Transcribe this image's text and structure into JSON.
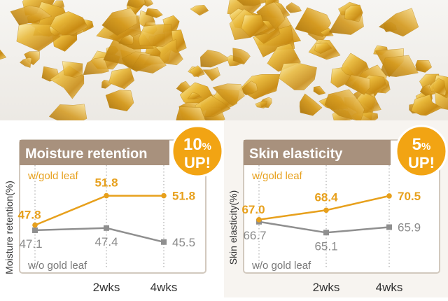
{
  "colors": {
    "gold": "#E7A01C",
    "gray": "#8F8F8F",
    "header_bar": "#A8917D",
    "frame": "#D2C9BE",
    "badge": "#F2A413",
    "hero_background": "#F3F1EE",
    "panel_background_right": "#F7F4F0"
  },
  "hero": {
    "image": "gold-leaf-flakes-photo"
  },
  "chart_data": [
    {
      "type": "line",
      "title": "Moisture retention",
      "ylabel": "Moisture retention(%)",
      "xlabel": "",
      "categories": [
        "",
        "2wks",
        "4wks"
      ],
      "ylim": [
        43,
        55
      ],
      "grid": "vertical dotted lines",
      "badge": {
        "line1_number": "10",
        "line1_unit": "%",
        "line2": "UP!"
      },
      "series": [
        {
          "name": "w/gold leaf",
          "color": "#E7A01C",
          "marker": "circle",
          "values": [
            47.8,
            51.8,
            51.8
          ],
          "labels": [
            "47.8",
            "51.8",
            "51.8"
          ]
        },
        {
          "name": "w/o gold leaf",
          "color": "#8F8F8F",
          "marker": "square",
          "values": [
            47.1,
            47.4,
            45.5
          ],
          "labels": [
            "47.1",
            "47.4",
            "45.5"
          ]
        }
      ]
    },
    {
      "type": "line",
      "title": "Skin elasticity",
      "ylabel": "Skin elasticity(%)",
      "xlabel": "",
      "categories": [
        "",
        "2wks",
        "4wks"
      ],
      "ylim": [
        61,
        74
      ],
      "grid": "vertical dotted lines",
      "badge": {
        "line1_number": "5",
        "line1_unit": "%",
        "line2": "UP!"
      },
      "series": [
        {
          "name": "w/gold leaf",
          "color": "#E7A01C",
          "marker": "circle",
          "values": [
            67.0,
            68.4,
            70.5
          ],
          "labels": [
            "67.0",
            "68.4",
            "70.5"
          ]
        },
        {
          "name": "w/o gold leaf",
          "color": "#8F8F8F",
          "marker": "square",
          "values": [
            66.7,
            65.1,
            65.9
          ],
          "labels": [
            "66.7",
            "65.1",
            "65.9"
          ]
        }
      ]
    }
  ]
}
